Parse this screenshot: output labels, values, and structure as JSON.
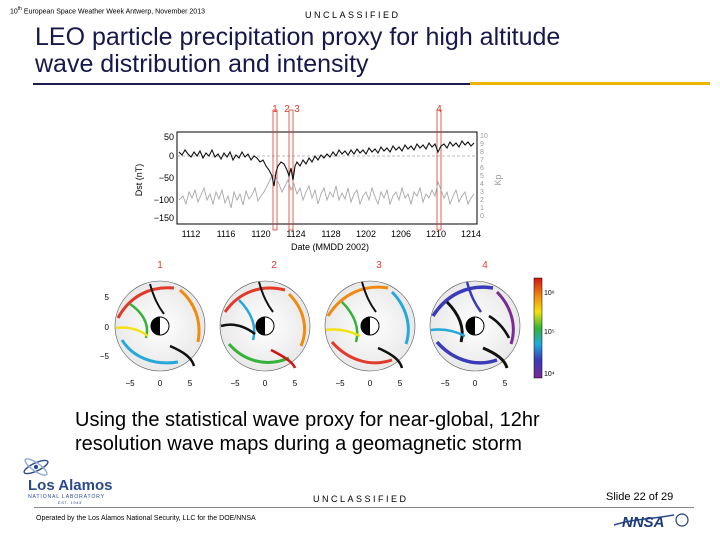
{
  "header": {
    "conference_prefix": "10",
    "conference_sup": "th",
    "conference_rest": " European Space Weather Week Antwerp, November 2013",
    "classification": "UNCLASSIFIED"
  },
  "slide": {
    "title_line1": "LEO particle precipitation proxy for high altitude",
    "title_line2": "wave distribution and intensity",
    "caption_line1": "Using the statistical wave proxy for near-global, 12hr",
    "caption_line2": "resolution wave maps during a geomagnetic storm"
  },
  "figure": {
    "markers": [
      "1",
      "2",
      "3",
      "4"
    ],
    "y_left_label": "Dst (nT)",
    "y_left_ticks": [
      "50",
      "0",
      "−50",
      "−100",
      "−150"
    ],
    "y_right_label": "Kp",
    "y_right_ticks": [
      "10",
      "9",
      "8",
      "7",
      "6",
      "5",
      "4",
      "3",
      "2",
      "1",
      "0"
    ],
    "x_label": "Date (MMDD 2002)",
    "x_ticks": [
      "1112",
      "1116",
      "1120",
      "1124",
      "1128",
      "1202",
      "1206",
      "1210",
      "1214"
    ],
    "map_labels": [
      "1",
      "2",
      "3",
      "4"
    ],
    "map_ticks": [
      "−5",
      "0",
      "5"
    ],
    "colorbar_ticks": [
      "10⁶",
      "10⁵",
      "10⁴"
    ]
  },
  "footer": {
    "classification": "UNCLASSIFIED",
    "slide_label": "Slide 22 of 29",
    "operated_by": "Operated by the Los Alamos National Security, LLC for the DOE/NNSA",
    "logo_name": "Los Alamos",
    "logo_sub": "NATIONAL LABORATORY",
    "logo_est": "EST. 1943",
    "nnsa_text": "NNSA"
  },
  "colors": {
    "title": "#17174c",
    "gold_rule": "#f0b400",
    "navy_rule": "#1c1c4e",
    "marker_red": "#e03a2a",
    "logo_blue": "#2a4a8c"
  }
}
